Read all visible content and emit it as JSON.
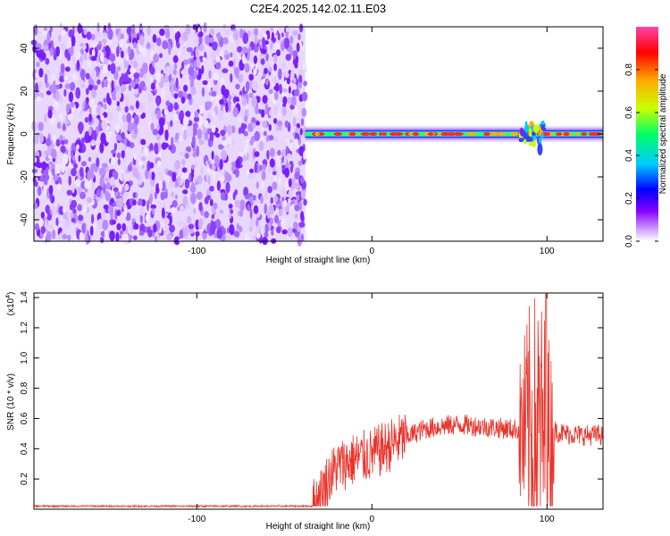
{
  "title": "C2E4.2025.142.02.11.E03",
  "chart_data": [
    {
      "type": "heatmap",
      "xlabel": "Height of straight line (km)",
      "ylabel": "Frequency (Hz)",
      "xlim": [
        -193,
        132
      ],
      "ylim": [
        -50,
        50
      ],
      "x_ticks": [
        -100,
        0,
        100
      ],
      "y_ticks": [
        -40,
        -20,
        0,
        20,
        40
      ],
      "colorbar": {
        "label": "Normalized spectral amplitude",
        "range": [
          0,
          1
        ],
        "ticks": [
          0.0,
          0.2,
          0.4,
          0.6,
          0.8
        ],
        "colors": [
          "#ffffff",
          "#cc99ff",
          "#8800ff",
          "#0000ff",
          "#00ccff",
          "#00ff66",
          "#ccff00",
          "#ffaa00",
          "#ff0000",
          "#ff44aa"
        ]
      },
      "noise_region": {
        "x_from": -193,
        "x_to": -38
      },
      "carrier": {
        "frequency_hz": 0,
        "x_from": -38,
        "x_to": 132,
        "disturbance_x": [
          85,
          98
        ]
      }
    },
    {
      "type": "line",
      "xlabel": "Height of straight line (km)",
      "ylabel": "SNR (10 * v/v)",
      "y_multiplier": "(x10",
      "y_multiplier_exp": "4",
      "y_multiplier_close": ")",
      "xlim": [
        -193,
        132
      ],
      "ylim": [
        0,
        1.43
      ],
      "x_ticks": [
        -100,
        0,
        100
      ],
      "y_ticks": [
        0.2,
        0.4,
        0.6,
        0.8,
        1.0,
        1.2,
        1.4
      ],
      "color": "#e8342c",
      "series_points": [
        [
          -193,
          0.02
        ],
        [
          -150,
          0.02
        ],
        [
          -100,
          0.02
        ],
        [
          -60,
          0.02
        ],
        [
          -34,
          0.02
        ],
        [
          -30,
          0.08
        ],
        [
          -25,
          0.2
        ],
        [
          -20,
          0.28
        ],
        [
          -10,
          0.33
        ],
        [
          0,
          0.36
        ],
        [
          10,
          0.42
        ],
        [
          20,
          0.48
        ],
        [
          30,
          0.53
        ],
        [
          40,
          0.55
        ],
        [
          50,
          0.56
        ],
        [
          60,
          0.55
        ],
        [
          70,
          0.54
        ],
        [
          80,
          0.53
        ],
        [
          85,
          0.53
        ],
        [
          88,
          0.4
        ],
        [
          92,
          0.7
        ],
        [
          95,
          0.3
        ],
        [
          98,
          1.0
        ],
        [
          100,
          0.5
        ],
        [
          104,
          0.52
        ],
        [
          110,
          0.5
        ],
        [
          120,
          0.49
        ],
        [
          132,
          0.49
        ]
      ],
      "burst_region": [
        84,
        104
      ]
    }
  ]
}
